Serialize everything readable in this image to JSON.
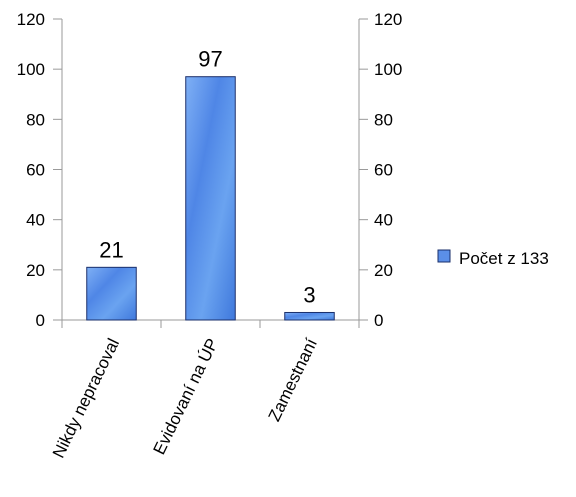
{
  "chart_data": {
    "type": "bar",
    "categories": [
      "Nikdy nepracoval",
      "Evidovaní na ÚP",
      "Zamestnaní"
    ],
    "series": [
      {
        "name": "Počet z 133",
        "values": [
          21,
          97,
          3
        ]
      }
    ],
    "data_labels": [
      "21",
      "97",
      "3"
    ],
    "ylim": [
      0,
      120
    ],
    "yticks": [
      0,
      20,
      40,
      60,
      80,
      100,
      120
    ],
    "secondary_y_axis": true,
    "legend_position": "right",
    "grid": false,
    "bar_color": "#5b8fe8",
    "bar_edge_color": "#1a2f6b"
  }
}
